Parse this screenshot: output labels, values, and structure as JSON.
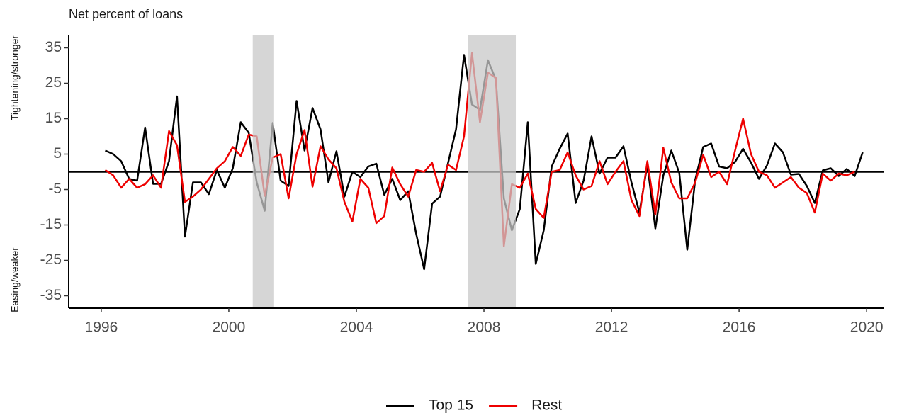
{
  "chart_data": {
    "type": "line",
    "title": "Net percent of loans",
    "y_label_top": "Tightening/stronger",
    "y_label_bottom": "Easing/weaker",
    "x": [
      1996.125,
      1996.375,
      1996.625,
      1996.875,
      1997.125,
      1997.375,
      1997.625,
      1997.875,
      1998.125,
      1998.375,
      1998.625,
      1998.875,
      1999.125,
      1999.375,
      1999.625,
      1999.875,
      2000.125,
      2000.375,
      2000.625,
      2000.875,
      2001.125,
      2001.375,
      2001.625,
      2001.875,
      2002.125,
      2002.375,
      2002.625,
      2002.875,
      2003.125,
      2003.375,
      2003.625,
      2003.875,
      2004.125,
      2004.375,
      2004.625,
      2004.875,
      2005.125,
      2005.375,
      2005.625,
      2005.875,
      2006.125,
      2006.375,
      2006.625,
      2006.875,
      2007.125,
      2007.375,
      2007.625,
      2007.875,
      2008.125,
      2008.375,
      2008.625,
      2008.875,
      2009.125,
      2009.375,
      2009.625,
      2009.875,
      2010.125,
      2010.375,
      2010.625,
      2010.875,
      2011.125,
      2011.375,
      2011.625,
      2011.875,
      2012.125,
      2012.375,
      2012.625,
      2012.875,
      2013.125,
      2013.375,
      2013.625,
      2013.875,
      2014.125,
      2014.375,
      2014.625,
      2014.875,
      2015.125,
      2015.375,
      2015.625,
      2015.875,
      2016.125,
      2016.375,
      2016.625,
      2016.875,
      2017.125,
      2017.375,
      2017.625,
      2017.875,
      2018.125,
      2018.375,
      2018.625,
      2018.875,
      2019.125,
      2019.375,
      2019.625,
      2019.875
    ],
    "series": [
      {
        "name": "Top 15",
        "color": "#000000",
        "values": [
          6,
          5,
          3,
          -2,
          -2.5,
          12.5,
          -3.4,
          -3.4,
          3,
          21.3,
          -18.3,
          -3,
          -3,
          -6.3,
          0.5,
          -4.5,
          1,
          14,
          11,
          -3,
          -11,
          13.8,
          -2.5,
          -4,
          20,
          6,
          18,
          12,
          -3,
          5.8,
          -7,
          0,
          -1.5,
          1.5,
          2.3,
          -6.5,
          -2,
          -8,
          -5.5,
          -17.5,
          -27.5,
          -9,
          -7,
          2.5,
          12,
          33,
          19,
          17.5,
          31.5,
          26,
          -7.5,
          -16.5,
          -10.5,
          14,
          -26,
          -16.5,
          1.5,
          6.5,
          10.8,
          -8.8,
          -2.5,
          10,
          -0.5,
          4,
          4,
          7.2,
          -3,
          -11.5,
          2,
          -16,
          -1,
          6,
          -0.3,
          -22,
          -2.3,
          7,
          8,
          1.5,
          1,
          2.8,
          6.5,
          2.6,
          -2,
          1.8,
          8,
          5.5,
          -0.8,
          -0.6,
          -4,
          -8.8,
          0.4,
          1,
          -1.2,
          0.8,
          -1.2,
          5.5
        ]
      },
      {
        "name": "Rest",
        "color": "#ee0000",
        "values": [
          0.5,
          -1,
          -4.5,
          -2,
          -4.5,
          -3.5,
          -1,
          -4.5,
          11.5,
          7.5,
          -8.5,
          -7,
          -5,
          -2,
          1,
          3,
          7,
          4.5,
          10.5,
          10,
          -6.8,
          4,
          5,
          -7.5,
          5,
          11.8,
          -4.2,
          7.2,
          3.5,
          1,
          -8.5,
          -14,
          -2,
          -4.5,
          -14.5,
          -12.5,
          1.2,
          -3.5,
          -7,
          0.5,
          0,
          2.5,
          -5.5,
          2,
          0.5,
          10,
          33.5,
          14,
          28,
          26.5,
          -21,
          -3.5,
          -4.5,
          -0.5,
          -10.5,
          -13,
          0,
          0.5,
          5.5,
          -1,
          -5,
          -4,
          3,
          -3.5,
          0,
          3,
          -8,
          -12.5,
          3,
          -12,
          6.8,
          -3,
          -7.5,
          -7.5,
          -3,
          4.8,
          -1.5,
          0,
          -3.5,
          6,
          15,
          5,
          0,
          -1,
          -4.5,
          -3,
          -1.5,
          -4.5,
          -6,
          -11.5,
          -0.5,
          -2.5,
          -0.5,
          -1,
          0,
          null
        ]
      }
    ],
    "shaded_regions": [
      [
        2000.75,
        2001.42
      ],
      [
        2007.5,
        2009.0
      ]
    ],
    "hline": 0,
    "xlim": [
      1994.98,
      2020.53
    ],
    "xticks": [
      1996,
      2000,
      2004,
      2008,
      2012,
      2016,
      2020
    ],
    "ylim": [
      -38.5,
      38.5
    ],
    "yticks": [
      -35,
      -25,
      -15,
      -5,
      5,
      15,
      25,
      35
    ],
    "legend": "bottom"
  }
}
